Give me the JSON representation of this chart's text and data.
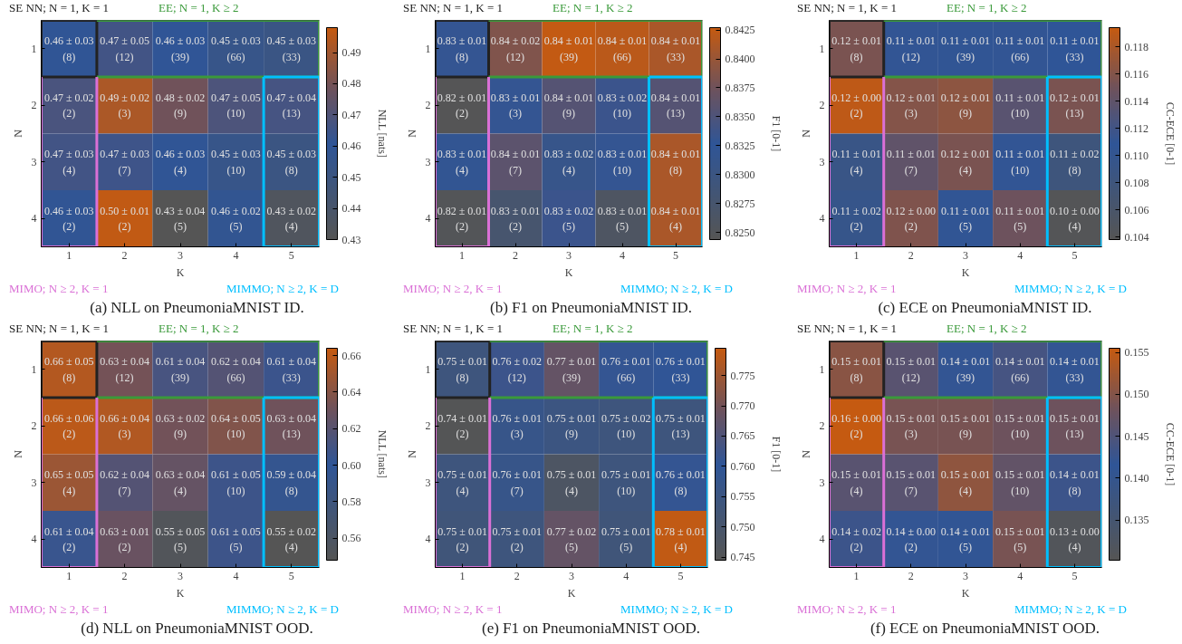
{
  "chart_data": [
    {
      "type": "heatmap",
      "title": "(a) NLL on PneumoniaMNIST ID.",
      "xlabel": "K",
      "ylabel": "N",
      "clabel": "NLL [nats]",
      "categories": [
        "1",
        "2",
        "3",
        "4",
        "5"
      ],
      "y_categories": [
        "1",
        "2",
        "3",
        "4"
      ],
      "cells": [
        [
          0.46,
          0.466,
          0.461,
          0.454,
          0.452
        ],
        [
          0.468,
          0.492,
          0.479,
          0.469,
          0.467
        ],
        [
          0.466,
          0.465,
          0.46,
          0.454,
          0.451
        ],
        [
          0.459,
          0.497,
          0.43,
          0.458,
          0.434
        ]
      ],
      "cell_labels": [
        [
          "0.46 ± 0.03\n(8)",
          "0.47 ± 0.05\n(12)",
          "0.46 ± 0.03\n(39)",
          "0.45 ± 0.03\n(66)",
          "0.45 ± 0.03\n(33)"
        ],
        [
          "0.47 ± 0.02\n(2)",
          "0.49 ± 0.02\n(3)",
          "0.48 ± 0.02\n(9)",
          "0.47 ± 0.05\n(10)",
          "0.47 ± 0.04\n(13)"
        ],
        [
          "0.47 ± 0.03\n(4)",
          "0.47 ± 0.03\n(7)",
          "0.46 ± 0.03\n(4)",
          "0.45 ± 0.03\n(10)",
          "0.45 ± 0.03\n(8)"
        ],
        [
          "0.46 ± 0.03\n(2)",
          "0.50 ± 0.01\n(2)",
          "0.43 ± 0.04\n(5)",
          "0.46 ± 0.02\n(5)",
          "0.43 ± 0.02\n(4)"
        ]
      ],
      "clim": [
        0.43,
        0.498
      ],
      "cticks": [
        0.43,
        0.44,
        0.45,
        0.46,
        0.47,
        0.48,
        0.49
      ],
      "annotations": [
        "SE NN; N = 1, K = 1",
        "EE; N = 1, K ≥ 2",
        "MIMO; N ≥ 2, K = 1",
        "MIMMO; N ≥ 2, K = D"
      ]
    },
    {
      "type": "heatmap",
      "title": "(b) F1 on PneumoniaMNIST ID.",
      "xlabel": "K",
      "ylabel": "N",
      "clabel": "F1 [0-1]",
      "categories": [
        "1",
        "2",
        "3",
        "4",
        "5"
      ],
      "y_categories": [
        "1",
        "2",
        "3",
        "4"
      ],
      "cells": [
        [
          0.833,
          0.8385,
          0.8425,
          0.842,
          0.841
        ],
        [
          0.8245,
          0.833,
          0.8355,
          0.8335,
          0.8355
        ],
        [
          0.832,
          0.836,
          0.831,
          0.833,
          0.841
        ],
        [
          0.8248,
          0.8275,
          0.8335,
          0.826,
          0.841
        ]
      ],
      "cell_labels": [
        [
          "0.83 ± 0.01\n(8)",
          "0.84 ± 0.02\n(12)",
          "0.84 ± 0.01\n(39)",
          "0.84 ± 0.01\n(66)",
          "0.84 ± 0.01\n(33)"
        ],
        [
          "0.82 ± 0.01\n(2)",
          "0.83 ± 0.01\n(3)",
          "0.84 ± 0.01\n(9)",
          "0.83 ± 0.02\n(10)",
          "0.84 ± 0.01\n(13)"
        ],
        [
          "0.83 ± 0.01\n(4)",
          "0.84 ± 0.01\n(7)",
          "0.83 ± 0.02\n(4)",
          "0.83 ± 0.01\n(10)",
          "0.84 ± 0.01\n(8)"
        ],
        [
          "0.82 ± 0.01\n(2)",
          "0.83 ± 0.01\n(2)",
          "0.83 ± 0.02\n(5)",
          "0.83 ± 0.01\n(5)",
          "0.84 ± 0.01\n(4)"
        ]
      ],
      "clim": [
        0.8244,
        0.8427
      ],
      "cticks": [
        {
          "value": 0.825,
          "label": "0.8250"
        },
        0.8275,
        {
          "value": 0.83,
          "label": "0.8300"
        },
        0.8325,
        {
          "value": 0.835,
          "label": "0.8350"
        },
        0.8375,
        {
          "value": 0.84,
          "label": "0.8400"
        },
        0.8425
      ],
      "annotations": [
        "SE NN; N = 1, K = 1",
        "EE; N = 1, K ≥ 2",
        "MIMO; N ≥ 2, K = 1",
        "MIMMO; N ≥ 2, K = D"
      ]
    },
    {
      "type": "heatmap",
      "title": "(c) ECE on PneumoniaMNIST ID.",
      "xlabel": "K",
      "ylabel": "N",
      "clabel": "CC-ECE [0-1]",
      "categories": [
        "1",
        "2",
        "3",
        "4",
        "5"
      ],
      "y_categories": [
        "1",
        "2",
        "3",
        "4"
      ],
      "cells": [
        [
          0.1155,
          0.111,
          0.1105,
          0.111,
          0.1108
        ],
        [
          0.119,
          0.116,
          0.1165,
          0.1135,
          0.1155
        ],
        [
          0.109,
          0.114,
          0.1155,
          0.111,
          0.108
        ],
        [
          0.1095,
          0.1158,
          0.1105,
          0.1148,
          0.104
        ]
      ],
      "cell_labels": [
        [
          "0.12 ± 0.01\n(8)",
          "0.11 ± 0.01\n(12)",
          "0.11 ± 0.01\n(39)",
          "0.11 ± 0.01\n(66)",
          "0.11 ± 0.01\n(33)"
        ],
        [
          "0.12 ± 0.00\n(2)",
          "0.12 ± 0.01\n(3)",
          "0.12 ± 0.01\n(9)",
          "0.11 ± 0.01\n(10)",
          "0.12 ± 0.01\n(13)"
        ],
        [
          "0.11 ± 0.01\n(4)",
          "0.11 ± 0.01\n(7)",
          "0.12 ± 0.01\n(4)",
          "0.11 ± 0.01\n(10)",
          "0.11 ± 0.02\n(8)"
        ],
        [
          "0.11 ± 0.02\n(2)",
          "0.12 ± 0.00\n(2)",
          "0.11 ± 0.01\n(5)",
          "0.11 ± 0.01\n(5)",
          "0.10 ± 0.00\n(4)"
        ]
      ],
      "clim": [
        0.1038,
        0.1194
      ],
      "cticks": [
        0.104,
        0.106,
        0.108,
        {
          "value": 0.11,
          "label": "0.110"
        },
        0.112,
        0.114,
        0.116,
        0.118
      ],
      "annotations": [
        "SE NN; N = 1, K = 1",
        "EE; N = 1, K ≥ 2",
        "MIMO; N ≥ 2, K = 1",
        "MIMMO; N ≥ 2, K = D"
      ]
    },
    {
      "type": "heatmap",
      "title": "(d) NLL on PneumoniaMNIST OOD.",
      "xlabel": "K",
      "ylabel": "N",
      "clabel": "NLL [nats]",
      "categories": [
        "1",
        "2",
        "3",
        "4",
        "5"
      ],
      "y_categories": [
        "1",
        "2",
        "3",
        "4"
      ],
      "cells": [
        [
          0.657,
          0.633,
          0.612,
          0.618,
          0.606
        ],
        [
          0.66,
          0.656,
          0.632,
          0.638,
          0.631
        ],
        [
          0.648,
          0.618,
          0.626,
          0.607,
          0.594
        ],
        [
          0.605,
          0.628,
          0.552,
          0.607,
          0.548
        ]
      ],
      "cell_labels": [
        [
          "0.66 ± 0.05\n(8)",
          "0.63 ± 0.04\n(12)",
          "0.61 ± 0.04\n(39)",
          "0.62 ± 0.04\n(66)",
          "0.61 ± 0.04\n(33)"
        ],
        [
          "0.66 ± 0.06\n(2)",
          "0.66 ± 0.04\n(3)",
          "0.63 ± 0.02\n(9)",
          "0.64 ± 0.05\n(10)",
          "0.63 ± 0.04\n(13)"
        ],
        [
          "0.65 ± 0.05\n(4)",
          "0.62 ± 0.04\n(7)",
          "0.63 ± 0.04\n(4)",
          "0.61 ± 0.05\n(10)",
          "0.59 ± 0.04\n(8)"
        ],
        [
          "0.61 ± 0.04\n(2)",
          "0.63 ± 0.01\n(2)",
          "0.55 ± 0.05\n(5)",
          "0.61 ± 0.05\n(5)",
          "0.55 ± 0.02\n(4)"
        ]
      ],
      "clim": [
        0.548,
        0.664
      ],
      "cticks": [
        0.56,
        0.58,
        {
          "value": 0.6,
          "label": "0.60"
        },
        0.62,
        0.64,
        0.66
      ],
      "annotations": [
        "SE NN; N = 1, K = 1",
        "EE; N = 1, K ≥ 2",
        "MIMO; N ≥ 2, K = 1",
        "MIMMO; N ≥ 2, K = D"
      ]
    },
    {
      "type": "heatmap",
      "title": "(e) F1 on PneumoniaMNIST OOD.",
      "xlabel": "K",
      "ylabel": "N",
      "clabel": "F1 [0-1]",
      "categories": [
        "1",
        "2",
        "3",
        "4",
        "5"
      ],
      "y_categories": [
        "1",
        "2",
        "3",
        "4"
      ],
      "cells": [
        [
          0.754,
          0.762,
          0.768,
          0.761,
          0.76
        ],
        [
          0.7448,
          0.757,
          0.755,
          0.754,
          0.754
        ],
        [
          0.754,
          0.757,
          0.748,
          0.754,
          0.761
        ],
        [
          0.753,
          0.754,
          0.768,
          0.753,
          0.779
        ]
      ],
      "cell_labels": [
        [
          "0.75 ± 0.01\n(8)",
          "0.76 ± 0.02\n(12)",
          "0.77 ± 0.01\n(39)",
          "0.76 ± 0.01\n(66)",
          "0.76 ± 0.01\n(33)"
        ],
        [
          "0.74 ± 0.01\n(2)",
          "0.76 ± 0.01\n(3)",
          "0.75 ± 0.01\n(9)",
          "0.75 ± 0.02\n(10)",
          "0.75 ± 0.01\n(13)"
        ],
        [
          "0.75 ± 0.01\n(4)",
          "0.76 ± 0.01\n(7)",
          "0.75 ± 0.01\n(4)",
          "0.75 ± 0.01\n(10)",
          "0.76 ± 0.01\n(8)"
        ],
        [
          "0.75 ± 0.01\n(2)",
          "0.75 ± 0.01\n(2)",
          "0.77 ± 0.02\n(5)",
          "0.75 ± 0.01\n(5)",
          "0.78 ± 0.01\n(4)"
        ]
      ],
      "clim": [
        0.7445,
        0.7795
      ],
      "cticks": [
        0.745,
        {
          "value": 0.75,
          "label": "0.750"
        },
        0.755,
        {
          "value": 0.76,
          "label": "0.760"
        },
        0.765,
        {
          "value": 0.77,
          "label": "0.770"
        },
        0.775
      ],
      "annotations": [
        "SE NN; N = 1, K = 1",
        "EE; N = 1, K ≥ 2",
        "MIMO; N ≥ 2, K = 1",
        "MIMMO; N ≥ 2, K = D"
      ]
    },
    {
      "type": "heatmap",
      "title": "(f) ECE on PneumoniaMNIST OOD.",
      "xlabel": "K",
      "ylabel": "N",
      "clabel": "CC-ECE [0-1]",
      "categories": [
        "1",
        "2",
        "3",
        "4",
        "5"
      ],
      "y_categories": [
        "1",
        "2",
        "3",
        "4"
      ],
      "cells": [
        [
          0.1505,
          0.146,
          0.142,
          0.144,
          0.142
        ],
        [
          0.1555,
          0.149,
          0.149,
          0.148,
          0.148
        ],
        [
          0.146,
          0.146,
          0.151,
          0.147,
          0.143
        ],
        [
          0.143,
          0.142,
          0.141,
          0.149,
          0.131
        ]
      ],
      "cell_labels": [
        [
          "0.15 ± 0.01\n(8)",
          "0.15 ± 0.01\n(12)",
          "0.14 ± 0.01\n(39)",
          "0.14 ± 0.01\n(66)",
          "0.14 ± 0.01\n(33)"
        ],
        [
          "0.16 ± 0.00\n(2)",
          "0.15 ± 0.01\n(3)",
          "0.15 ± 0.01\n(9)",
          "0.15 ± 0.01\n(10)",
          "0.15 ± 0.01\n(13)"
        ],
        [
          "0.15 ± 0.01\n(4)",
          "0.15 ± 0.01\n(7)",
          "0.15 ± 0.01\n(4)",
          "0.15 ± 0.01\n(10)",
          "0.14 ± 0.01\n(8)"
        ],
        [
          "0.14 ± 0.02\n(2)",
          "0.14 ± 0.00\n(2)",
          "0.14 ± 0.01\n(5)",
          "0.15 ± 0.01\n(5)",
          "0.13 ± 0.00\n(4)"
        ]
      ],
      "clim": [
        0.1302,
        0.1555
      ],
      "cticks": [
        0.135,
        {
          "value": 0.14,
          "label": "0.140"
        },
        0.145,
        {
          "value": 0.15,
          "label": "0.150"
        },
        0.155
      ],
      "annotations": [
        "SE NN; N = 1, K = 1",
        "EE; N = 1, K ≥ 2",
        "MIMO; N ≥ 2, K = 1",
        "MIMMO; N ≥ 2, K = D"
      ]
    }
  ]
}
